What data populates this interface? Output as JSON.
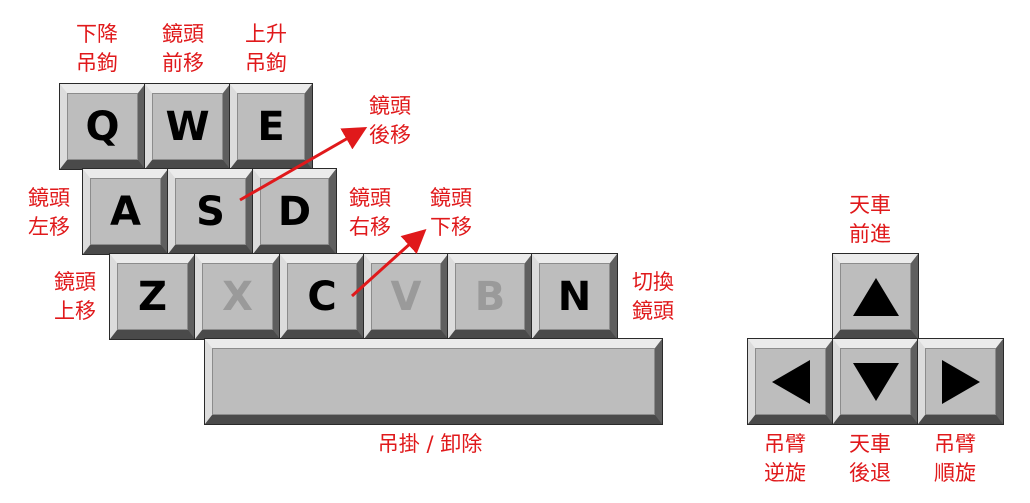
{
  "keys": {
    "q": "Q",
    "w": "W",
    "e": "E",
    "a": "A",
    "s": "S",
    "d": "D",
    "z": "Z",
    "x": "X",
    "c": "C",
    "v": "V",
    "b": "B",
    "n": "N"
  },
  "labels": {
    "q": [
      "下降",
      "吊鉤"
    ],
    "w": [
      "鏡頭",
      "前移"
    ],
    "e": [
      "上升",
      "吊鉤"
    ],
    "s": [
      "鏡頭",
      "後移"
    ],
    "a": [
      "鏡頭",
      "左移"
    ],
    "d": [
      "鏡頭",
      "右移"
    ],
    "c": [
      "鏡頭",
      "下移"
    ],
    "z": [
      "鏡頭",
      "上移"
    ],
    "n": [
      "切換",
      "鏡頭"
    ],
    "space": "吊掛 / 卸除",
    "up": [
      "天車",
      "前進"
    ],
    "left": [
      "吊臂",
      "逆旋"
    ],
    "down": [
      "天車",
      "後退"
    ],
    "right": [
      "吊臂",
      "順旋"
    ]
  },
  "arrow_keys": {
    "up": "up-triangle",
    "down": "down-triangle",
    "left": "left-triangle",
    "right": "right-triangle"
  },
  "colors": {
    "label": "#e0191b",
    "key_face": "#c8c8c8",
    "disabled_text": "#9a9a9a",
    "active_text": "#000000"
  }
}
